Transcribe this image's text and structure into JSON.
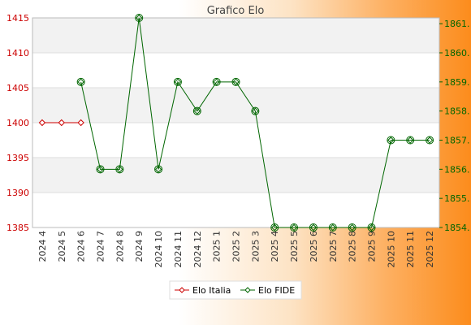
{
  "chart_data": {
    "type": "line",
    "title": "Grafico Elo",
    "categories": [
      "2024 4",
      "2024 5",
      "2024 6",
      "2024 7",
      "2024 8",
      "2024 9",
      "2024 10",
      "2024 11",
      "2024 12",
      "2025 1",
      "2025 2",
      "2025 3",
      "2025 4",
      "2025 5",
      "2025 6",
      "2025 7",
      "2025 8",
      "2025 9",
      "2025 10",
      "2025 11",
      "2025 12"
    ],
    "left_axis": {
      "ylim": [
        1385,
        1415
      ],
      "ticks": [
        1385,
        1390,
        1395,
        1400,
        1405,
        1410,
        1415
      ],
      "tick_labels": [
        "1385",
        "1390",
        "1395",
        "1400",
        "1405",
        "1410",
        "1415"
      ],
      "color": "#cc0000"
    },
    "right_axis": {
      "ylim": [
        1854,
        1861.2
      ],
      "ticks": [
        1854,
        1855,
        1856,
        1857,
        1858,
        1859,
        1860,
        1861
      ],
      "tick_labels": [
        "1854.",
        "1855.",
        "1856.",
        "1857.",
        "1858.",
        "1859.",
        "1860.",
        "1861."
      ],
      "color": "#006600"
    },
    "series": [
      {
        "name": "Elo Italia",
        "axis": "left",
        "color": "#cc0000",
        "marker": "diamond",
        "values": [
          1400,
          1400,
          1400,
          null,
          null,
          null,
          null,
          null,
          null,
          null,
          null,
          null,
          null,
          null,
          null,
          null,
          null,
          null,
          null,
          null,
          null
        ]
      },
      {
        "name": "Elo FIDE",
        "axis": "right",
        "color": "#006600",
        "marker": "circle-diamond",
        "values": [
          null,
          null,
          1859,
          1856,
          1856,
          1861.2,
          1856,
          1859,
          1858,
          1859,
          1859,
          1858,
          1854,
          1854,
          1854,
          1854,
          1854,
          1854,
          1857,
          1857,
          1857
        ]
      }
    ],
    "grid": true,
    "legend": "bottom-center"
  }
}
